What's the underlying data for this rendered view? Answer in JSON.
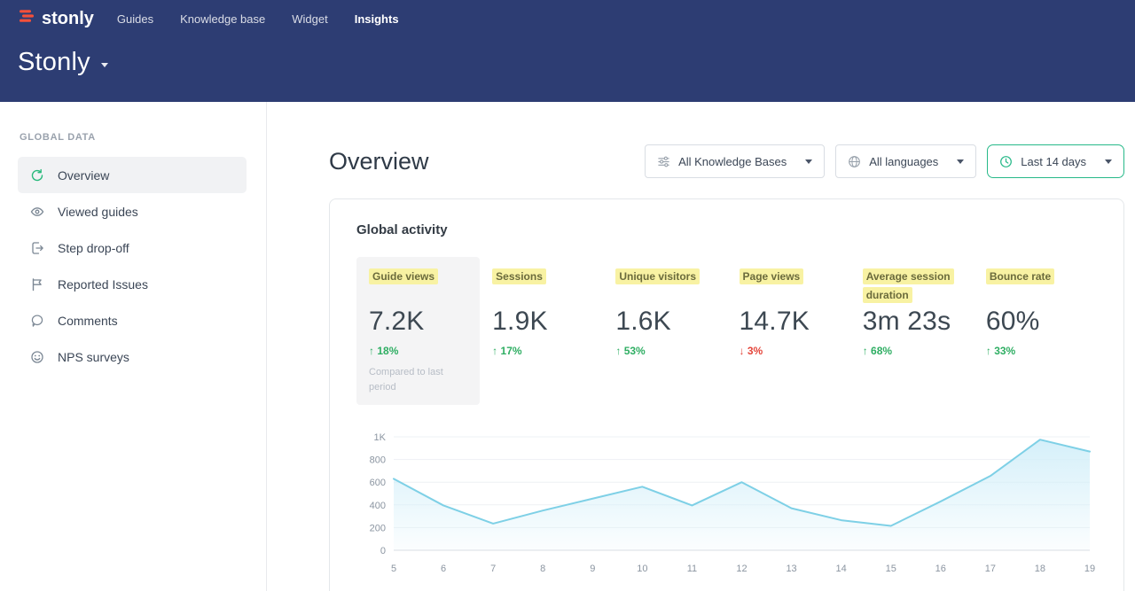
{
  "header": {
    "logo_text": "stonly",
    "nav": [
      {
        "label": "Guides"
      },
      {
        "label": "Knowledge base"
      },
      {
        "label": "Widget"
      },
      {
        "label": "Insights",
        "active": true
      }
    ],
    "workspace_title": "Stonly"
  },
  "sidebar": {
    "section_label": "GLOBAL DATA",
    "items": [
      {
        "label": "Overview",
        "icon": "overview-icon",
        "active": true
      },
      {
        "label": "Viewed guides",
        "icon": "eye-icon"
      },
      {
        "label": "Step drop-off",
        "icon": "step-dropoff-icon"
      },
      {
        "label": "Reported Issues",
        "icon": "flag-icon"
      },
      {
        "label": "Comments",
        "icon": "comment-icon"
      },
      {
        "label": "NPS surveys",
        "icon": "smiley-icon"
      }
    ]
  },
  "main": {
    "title": "Overview",
    "filters": [
      {
        "label": "All Knowledge Bases",
        "icon": "filter-sliders-icon"
      },
      {
        "label": "All languages",
        "icon": "globe-icon"
      },
      {
        "label": "Last 14 days",
        "icon": "clock-icon",
        "accent": true
      }
    ],
    "card": {
      "title": "Global activity",
      "metrics": [
        {
          "label": "Guide views",
          "value": "7.2K",
          "arrow": "↑",
          "delta": "18%",
          "direction": "up",
          "selected": true,
          "note": "Compared to last period"
        },
        {
          "label": "Sessions",
          "value": "1.9K",
          "arrow": "↑",
          "delta": "17%",
          "direction": "up"
        },
        {
          "label": "Unique visitors",
          "value": "1.6K",
          "arrow": "↑",
          "delta": "53%",
          "direction": "up"
        },
        {
          "label": "Page views",
          "value": "14.7K",
          "arrow": "↓",
          "delta": "3%",
          "direction": "down"
        },
        {
          "label": "Average session duration",
          "value": "3m 23s",
          "arrow": "↑",
          "delta": "68%",
          "direction": "up"
        },
        {
          "label": "Bounce rate",
          "value": "60%",
          "arrow": "↑",
          "delta": "33%",
          "direction": "up"
        }
      ]
    }
  },
  "chart_data": {
    "type": "area",
    "title": "Global activity",
    "x": [
      5,
      6,
      7,
      8,
      9,
      10,
      11,
      12,
      13,
      14,
      15,
      16,
      17,
      18,
      19
    ],
    "series": [
      {
        "name": "Guide views",
        "values": [
          630,
          395,
          235,
          350,
          455,
          560,
          395,
          600,
          370,
          265,
          215,
          430,
          655,
          975,
          870
        ]
      }
    ],
    "ylim": [
      0,
      1000
    ],
    "yticks": [
      0,
      200,
      400,
      600,
      800,
      1000
    ],
    "ytick_labels": [
      "0",
      "200",
      "400",
      "600",
      "800",
      "1K"
    ],
    "grid": true,
    "legend": false,
    "line_color": "#7ed0e6",
    "fill_top_color": "#d3eff9"
  },
  "colors": {
    "header_bg": "#2d3d73",
    "accent_teal": "#27b989",
    "highlight_yellow": "#f8f2a3",
    "positive": "#2fae63",
    "negative": "#e4453a",
    "logo_red": "#f4503a"
  }
}
